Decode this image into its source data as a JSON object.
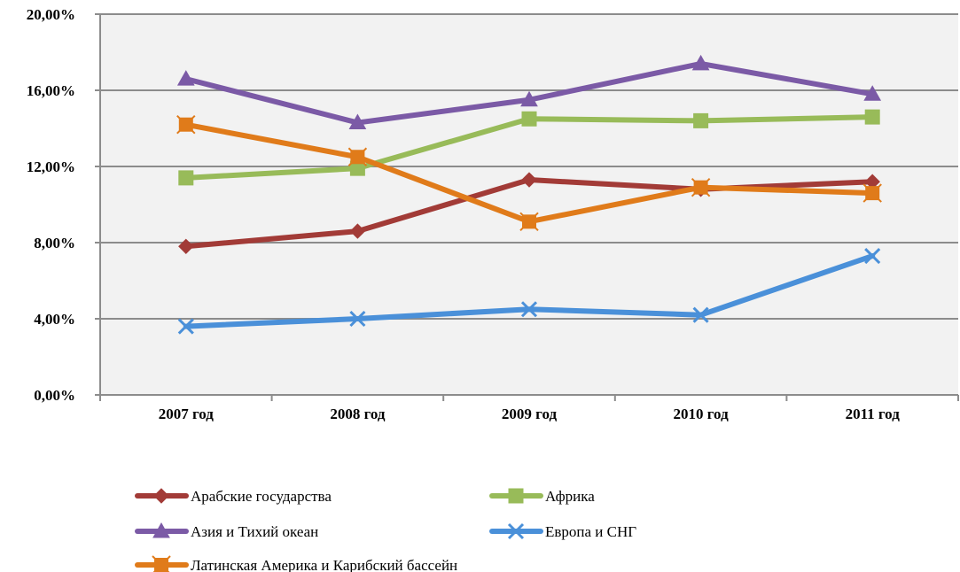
{
  "chart_data": {
    "type": "line",
    "categories": [
      "2007 год",
      "2008 год",
      "2009 год",
      "2010 год",
      "2011 год"
    ],
    "y_ticks": [
      "0,00%",
      "4,00%",
      "8,00%",
      "12,00%",
      "16,00%",
      "20,00%"
    ],
    "ylim": [
      0,
      20
    ],
    "grid": "horizontal",
    "legend_position": "bottom",
    "series": [
      {
        "name": "Арабские государства",
        "color": "#a23b37",
        "marker": "diamond",
        "values": [
          7.8,
          8.6,
          11.3,
          10.8,
          11.2
        ]
      },
      {
        "name": "Африка",
        "color": "#98bb59",
        "marker": "square",
        "values": [
          11.4,
          11.9,
          14.5,
          14.4,
          14.6
        ]
      },
      {
        "name": "Азия и Тихий океан",
        "color": "#7b5aa6",
        "marker": "triangle",
        "values": [
          16.6,
          14.3,
          15.5,
          17.4,
          15.8
        ]
      },
      {
        "name": "Европа и СНГ",
        "color": "#4a90d9",
        "marker": "x",
        "values": [
          3.6,
          4.0,
          4.5,
          4.2,
          7.3
        ]
      },
      {
        "name": "Латинская Америка и Карибский бассейн",
        "color": "#e07b1a",
        "marker": "square-star",
        "values": [
          14.2,
          12.5,
          9.1,
          10.9,
          10.6
        ]
      }
    ]
  }
}
